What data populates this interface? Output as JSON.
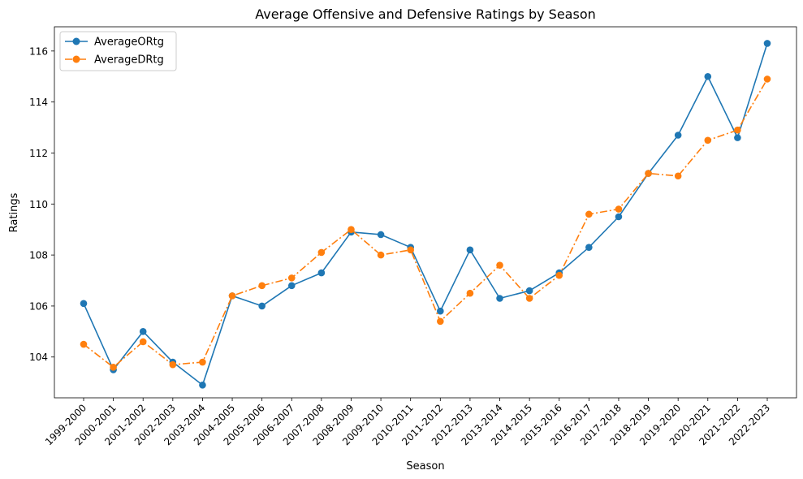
{
  "chart_data": {
    "type": "line",
    "title": "Average Offensive and Defensive Ratings by Season",
    "xlabel": "Season",
    "ylabel": "Ratings",
    "ylim": [
      102.4,
      116.95
    ],
    "yticks": [
      104,
      106,
      108,
      110,
      112,
      114,
      116
    ],
    "grid": false,
    "legend_position": "top-left",
    "categories": [
      "1999-2000",
      "2000-2001",
      "2001-2002",
      "2002-2003",
      "2003-2004",
      "2004-2005",
      "2005-2006",
      "2006-2007",
      "2007-2008",
      "2008-2009",
      "2009-2010",
      "2010-2011",
      "2011-2012",
      "2012-2013",
      "2013-2014",
      "2014-2015",
      "2015-2016",
      "2016-2017",
      "2017-2018",
      "2018-2019",
      "2019-2020",
      "2020-2021",
      "2021-2022",
      "2022-2023"
    ],
    "series": [
      {
        "name": "AverageORtg",
        "color": "#1f77b4",
        "linestyle": "solid",
        "values": [
          106.1,
          103.5,
          105.0,
          103.8,
          102.9,
          106.4,
          106.0,
          106.8,
          107.3,
          108.9,
          108.8,
          108.3,
          105.8,
          108.2,
          106.3,
          106.6,
          107.3,
          108.3,
          109.5,
          111.2,
          112.7,
          115.0,
          112.6,
          116.3
        ]
      },
      {
        "name": "AverageDRtg",
        "color": "#ff7f0e",
        "linestyle": "dashdot",
        "values": [
          104.5,
          103.6,
          104.6,
          103.7,
          103.8,
          106.4,
          106.8,
          107.1,
          108.1,
          109.0,
          108.0,
          108.2,
          105.4,
          106.5,
          107.6,
          106.3,
          107.2,
          109.6,
          109.8,
          111.2,
          111.1,
          112.5,
          112.9,
          114.9
        ]
      }
    ]
  }
}
